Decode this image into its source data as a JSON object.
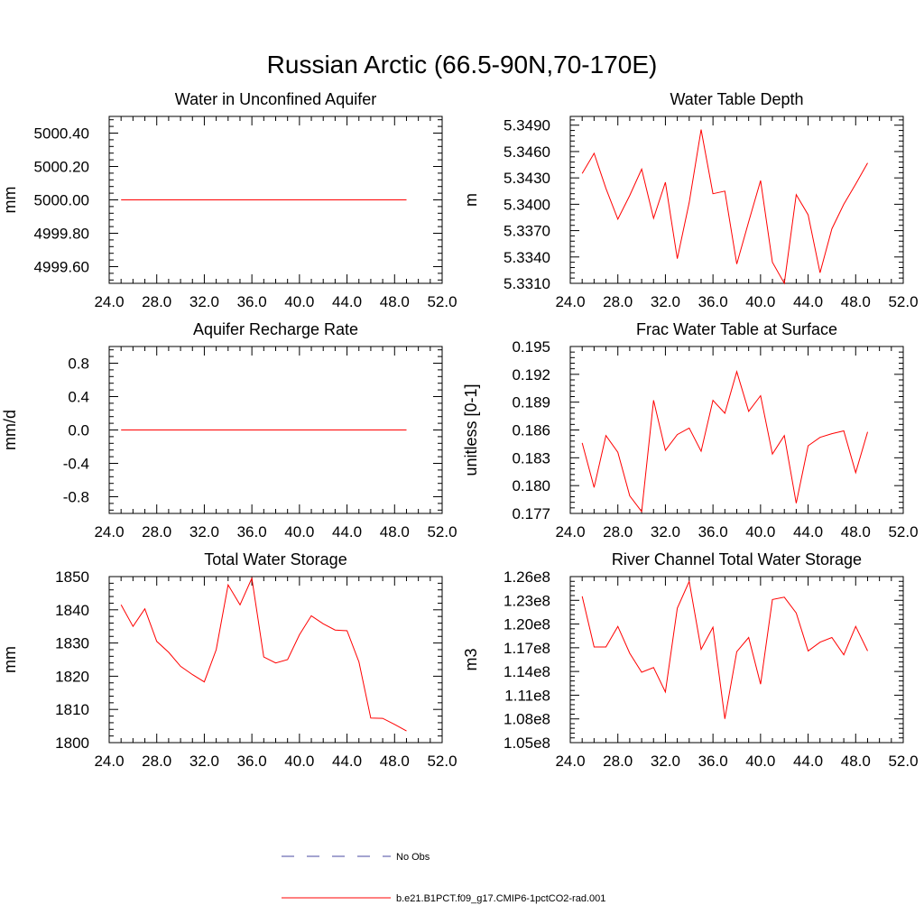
{
  "figure": {
    "title": "Russian Arctic (66.5-90N,70-170E)",
    "series_color": "#ff0000",
    "obs_color": "#4a4aa0"
  },
  "legend": {
    "obs_label": "No Obs",
    "model_label": "b.e21.B1PCT.f09_g17.CMIP6-1pctCO2-rad.001"
  },
  "chart_data": [
    {
      "type": "line",
      "title": "Water in Unconfined Aquifer",
      "xlabel": "",
      "ylabel": "mm",
      "xlim": [
        24,
        52
      ],
      "ylim": [
        4999.5,
        5000.5
      ],
      "xticks": [
        24,
        28,
        32,
        36,
        40,
        44,
        48,
        52
      ],
      "xtick_labels": [
        "24.0",
        "28.0",
        "32.0",
        "36.0",
        "40.0",
        "44.0",
        "48.0",
        "52.0"
      ],
      "yticks": [
        4999.6,
        4999.8,
        5000.0,
        5000.2,
        5000.4
      ],
      "ytick_labels": [
        "4999.60",
        "4999.80",
        "5000.00",
        "5000.20",
        "5000.40"
      ],
      "series": [
        {
          "x": [
            25,
            26,
            27,
            28,
            29,
            30,
            31,
            32,
            33,
            34,
            35,
            36,
            37,
            38,
            39,
            40,
            41,
            42,
            43,
            44,
            45,
            46,
            47,
            48,
            49
          ],
          "y": [
            5000,
            5000,
            5000,
            5000,
            5000,
            5000,
            5000,
            5000,
            5000,
            5000,
            5000,
            5000,
            5000,
            5000,
            5000,
            5000,
            5000,
            5000,
            5000,
            5000,
            5000,
            5000,
            5000,
            5000,
            5000
          ]
        }
      ]
    },
    {
      "type": "line",
      "title": "Water Table Depth",
      "xlabel": "",
      "ylabel": "m",
      "xlim": [
        24,
        52
      ],
      "ylim": [
        5.331,
        5.35
      ],
      "xticks": [
        24,
        28,
        32,
        36,
        40,
        44,
        48,
        52
      ],
      "xtick_labels": [
        "24.0",
        "28.0",
        "32.0",
        "36.0",
        "40.0",
        "44.0",
        "48.0",
        "52.0"
      ],
      "yticks": [
        5.331,
        5.334,
        5.337,
        5.34,
        5.343,
        5.346,
        5.349
      ],
      "ytick_labels": [
        "5.3310",
        "5.3340",
        "5.3370",
        "5.3400",
        "5.3430",
        "5.3460",
        "5.3490"
      ],
      "series": [
        {
          "x": [
            25,
            26,
            27,
            28,
            29,
            30,
            31,
            32,
            33,
            34,
            35,
            36,
            37,
            38,
            39,
            40,
            41,
            42,
            43,
            44,
            45,
            46,
            47,
            48,
            49
          ],
          "y": [
            5.3435,
            5.3458,
            5.3418,
            5.3383,
            5.341,
            5.344,
            5.3384,
            5.3425,
            5.3338,
            5.3402,
            5.3485,
            5.3412,
            5.3415,
            5.3332,
            5.338,
            5.3427,
            5.3334,
            5.331,
            5.3411,
            5.3388,
            5.3322,
            5.3372,
            5.34,
            5.3423,
            5.3447
          ]
        }
      ]
    },
    {
      "type": "line",
      "title": "Aquifer Recharge Rate",
      "xlabel": "",
      "ylabel": "mm/d",
      "xlim": [
        24,
        52
      ],
      "ylim": [
        -1.0,
        1.0
      ],
      "xticks": [
        24,
        28,
        32,
        36,
        40,
        44,
        48,
        52
      ],
      "xtick_labels": [
        "24.0",
        "28.0",
        "32.0",
        "36.0",
        "40.0",
        "44.0",
        "48.0",
        "52.0"
      ],
      "yticks": [
        -0.8,
        -0.4,
        0.0,
        0.4,
        0.8
      ],
      "ytick_labels": [
        "-0.8",
        "-0.4",
        "0.0",
        "0.4",
        "0.8"
      ],
      "series": [
        {
          "x": [
            25,
            26,
            27,
            28,
            29,
            30,
            31,
            32,
            33,
            34,
            35,
            36,
            37,
            38,
            39,
            40,
            41,
            42,
            43,
            44,
            45,
            46,
            47,
            48,
            49
          ],
          "y": [
            0,
            0,
            0,
            0,
            0,
            0,
            0,
            0,
            0,
            0,
            0,
            0,
            0,
            0,
            0,
            0,
            0,
            0,
            0,
            0,
            0,
            0,
            0,
            0,
            0
          ]
        }
      ]
    },
    {
      "type": "line",
      "title": "Frac Water Table at Surface",
      "xlabel": "",
      "ylabel": "unitless [0-1]",
      "xlim": [
        24,
        52
      ],
      "ylim": [
        0.177,
        0.195
      ],
      "xticks": [
        24,
        28,
        32,
        36,
        40,
        44,
        48,
        52
      ],
      "xtick_labels": [
        "24.0",
        "28.0",
        "32.0",
        "36.0",
        "40.0",
        "44.0",
        "48.0",
        "52.0"
      ],
      "yticks": [
        0.177,
        0.18,
        0.183,
        0.186,
        0.189,
        0.192,
        0.195
      ],
      "ytick_labels": [
        "0.177",
        "0.180",
        "0.183",
        "0.186",
        "0.189",
        "0.192",
        "0.195"
      ],
      "series": [
        {
          "x": [
            25,
            26,
            27,
            28,
            29,
            30,
            31,
            32,
            33,
            34,
            35,
            36,
            37,
            38,
            39,
            40,
            41,
            42,
            43,
            44,
            45,
            46,
            47,
            48,
            49
          ],
          "y": [
            0.1846,
            0.1798,
            0.1854,
            0.1836,
            0.1789,
            0.1772,
            0.1892,
            0.1838,
            0.1855,
            0.1862,
            0.1837,
            0.1892,
            0.1878,
            0.1923,
            0.188,
            0.1897,
            0.1834,
            0.1854,
            0.1781,
            0.1843,
            0.1852,
            0.1856,
            0.1859,
            0.1814,
            0.1858
          ]
        }
      ]
    },
    {
      "type": "line",
      "title": "Total Water Storage",
      "xlabel": "",
      "ylabel": "mm",
      "xlim": [
        24,
        52
      ],
      "ylim": [
        1800,
        1850
      ],
      "xticks": [
        24,
        28,
        32,
        36,
        40,
        44,
        48,
        52
      ],
      "xtick_labels": [
        "24.0",
        "28.0",
        "32.0",
        "36.0",
        "40.0",
        "44.0",
        "48.0",
        "52.0"
      ],
      "yticks": [
        1800,
        1810,
        1820,
        1830,
        1840,
        1850
      ],
      "ytick_labels": [
        "1800",
        "1810",
        "1820",
        "1830",
        "1840",
        "1850"
      ],
      "series": [
        {
          "x": [
            25,
            26,
            27,
            28,
            29,
            30,
            31,
            32,
            33,
            34,
            35,
            36,
            37,
            38,
            39,
            40,
            41,
            42,
            43,
            44,
            45,
            46,
            47,
            48,
            49
          ],
          "y": [
            1841.5,
            1835.0,
            1840.3,
            1830.5,
            1827.2,
            1823.0,
            1820.5,
            1818.3,
            1828.0,
            1847.5,
            1841.5,
            1849.5,
            1825.8,
            1824.0,
            1825.0,
            1832.5,
            1838.2,
            1835.8,
            1833.9,
            1833.7,
            1824.3,
            1807.4,
            1807.3,
            1805.5,
            1803.5
          ]
        }
      ]
    },
    {
      "type": "line",
      "title": "River Channel Total Water Storage",
      "xlabel": "",
      "ylabel": "m3",
      "xlim": [
        24,
        52
      ],
      "ylim": [
        105000000.0,
        126000000.0
      ],
      "xticks": [
        24,
        28,
        32,
        36,
        40,
        44,
        48,
        52
      ],
      "xtick_labels": [
        "24.0",
        "28.0",
        "32.0",
        "36.0",
        "40.0",
        "44.0",
        "48.0",
        "52.0"
      ],
      "yticks": [
        105000000.0,
        108000000.0,
        111000000.0,
        114000000.0,
        117000000.0,
        120000000.0,
        123000000.0,
        126000000.0
      ],
      "ytick_labels": [
        "1.05e8",
        "1.08e8",
        "1.11e8",
        "1.14e8",
        "1.17e8",
        "1.20e8",
        "1.23e8",
        "1.26e8"
      ],
      "series": [
        {
          "x": [
            25,
            26,
            27,
            28,
            29,
            30,
            31,
            32,
            33,
            34,
            35,
            36,
            37,
            38,
            39,
            40,
            41,
            42,
            43,
            44,
            45,
            46,
            47,
            48,
            49
          ],
          "y": [
            123500000.0,
            117100000.0,
            117100000.0,
            119700000.0,
            116300000.0,
            113900000.0,
            114500000.0,
            111400000.0,
            122000000.0,
            125400000.0,
            116800000.0,
            119600000.0,
            108000000.0,
            116500000.0,
            118300000.0,
            112400000.0,
            123100000.0,
            123400000.0,
            121400000.0,
            116600000.0,
            117700000.0,
            118300000.0,
            116100000.0,
            119700000.0,
            116600000.0
          ]
        }
      ]
    }
  ]
}
